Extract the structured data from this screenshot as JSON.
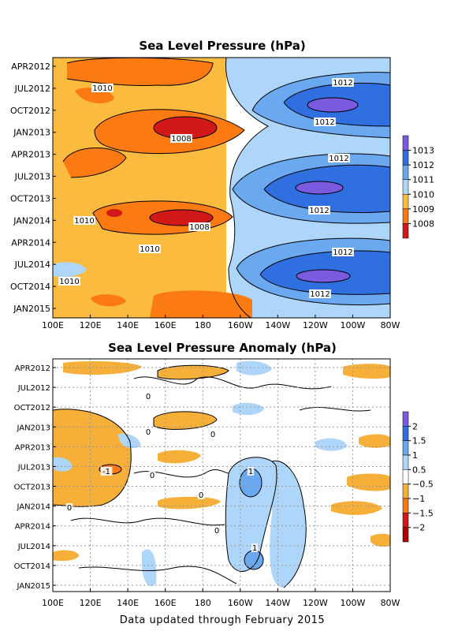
{
  "footer": "Data updated through February 2015",
  "chart_data": [
    {
      "type": "heatmap",
      "title": "Sea Level Pressure (hPa)",
      "x_ticks": [
        "100E",
        "120E",
        "140E",
        "160E",
        "180",
        "160W",
        "140W",
        "120W",
        "100W",
        "80W"
      ],
      "y_ticks": [
        "APR2012",
        "JUL2012",
        "OCT2012",
        "JAN2013",
        "APR2013",
        "JUL2013",
        "OCT2013",
        "JAN2014",
        "APR2014",
        "JUL2014",
        "OCT2014",
        "JAN2015"
      ],
      "colorbar": {
        "labels": [
          "1013",
          "1012",
          "1011",
          "1010",
          "1009",
          "1008"
        ],
        "colors": [
          "#7a5be0",
          "#2f6fe0",
          "#6aa8f0",
          "#aed6fa",
          "#fbbb3f",
          "#fb7a12",
          "#d31818"
        ]
      },
      "contour_labels": [
        "1010",
        "1012",
        "1012",
        "1008",
        "1012",
        "1012",
        "1010",
        "1008",
        "1010",
        "1012",
        "1010",
        "1012"
      ],
      "summary": {
        "west_min": 1008,
        "east_max": 1013
      }
    },
    {
      "type": "heatmap",
      "title": "Sea Level Pressure Anomaly (hPa)",
      "x_ticks": [
        "100E",
        "120E",
        "140E",
        "160E",
        "180",
        "160W",
        "140W",
        "120W",
        "100W",
        "80W"
      ],
      "y_ticks": [
        "APR2012",
        "JUL2012",
        "OCT2012",
        "JAN2013",
        "APR2013",
        "JUL2013",
        "OCT2013",
        "JAN2014",
        "APR2014",
        "JUL2014",
        "OCT2014",
        "JAN2015"
      ],
      "colorbar": {
        "labels": [
          "2",
          "1.5",
          "1",
          "0.5",
          "−0.5",
          "−1",
          "−1.5",
          "−2"
        ],
        "colors": [
          "#7a5be0",
          "#2f6fe0",
          "#6aa8f0",
          "#aed6fa",
          "#ffffff",
          "#f6b03a",
          "#fb7a12",
          "#d31818",
          "#b00000"
        ]
      },
      "contour_labels": [
        "0",
        "0",
        "0",
        "-1",
        "0",
        "0",
        "0",
        "1",
        "1",
        "0"
      ]
    }
  ]
}
